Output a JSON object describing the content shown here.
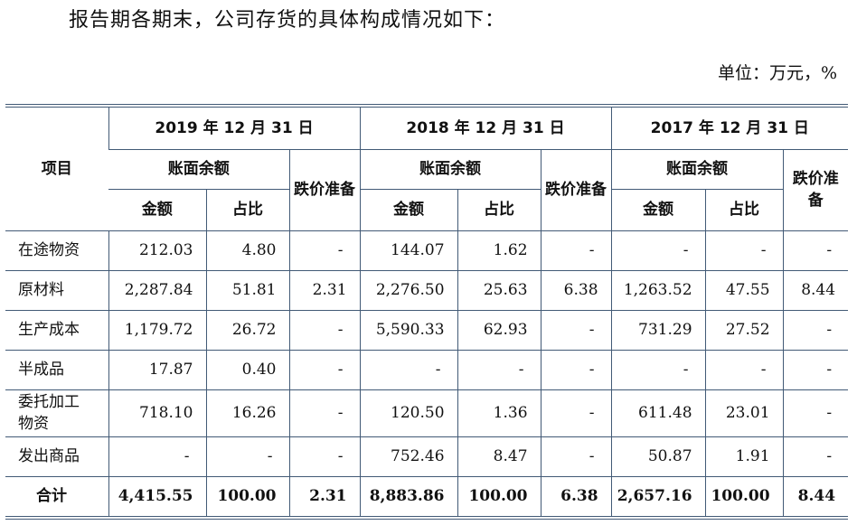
{
  "intro": "报告期各期末，公司存货的具体构成情况如下：",
  "unit": "单位：万元，%",
  "headers": {
    "item": "项目",
    "periods": [
      "2019 年 12 月 31 日",
      "2018 年 12 月 31 日",
      "2017 年 12 月 31 日"
    ],
    "book_balance": "账面余额",
    "impairment": "跌价准备",
    "amount": "金额",
    "ratio": "占比"
  },
  "rows": [
    {
      "label": "在途物资",
      "values": [
        "212.03",
        "4.80",
        "-",
        "144.07",
        "1.62",
        "-",
        "-",
        "-",
        "-"
      ]
    },
    {
      "label": "原材料",
      "values": [
        "2,287.84",
        "51.81",
        "2.31",
        "2,276.50",
        "25.63",
        "6.38",
        "1,263.52",
        "47.55",
        "8.44"
      ]
    },
    {
      "label": "生产成本",
      "values": [
        "1,179.72",
        "26.72",
        "-",
        "5,590.33",
        "62.93",
        "-",
        "731.29",
        "27.52",
        "-"
      ]
    },
    {
      "label": "半成品",
      "values": [
        "17.87",
        "0.40",
        "-",
        "-",
        "-",
        "-",
        "-",
        "-",
        "-"
      ]
    },
    {
      "label": "委托加工物资",
      "values": [
        "718.10",
        "16.26",
        "-",
        "120.50",
        "1.36",
        "-",
        "611.48",
        "23.01",
        "-"
      ]
    },
    {
      "label": "发出商品",
      "values": [
        "-",
        "-",
        "-",
        "752.46",
        "8.47",
        "-",
        "50.87",
        "1.91",
        "-"
      ]
    }
  ],
  "total": {
    "label": "合计",
    "values": [
      "4,415.55",
      "100.00",
      "2.31",
      "8,883.86",
      "100.00",
      "6.38",
      "2,657.16",
      "100.00",
      "8.44"
    ]
  }
}
